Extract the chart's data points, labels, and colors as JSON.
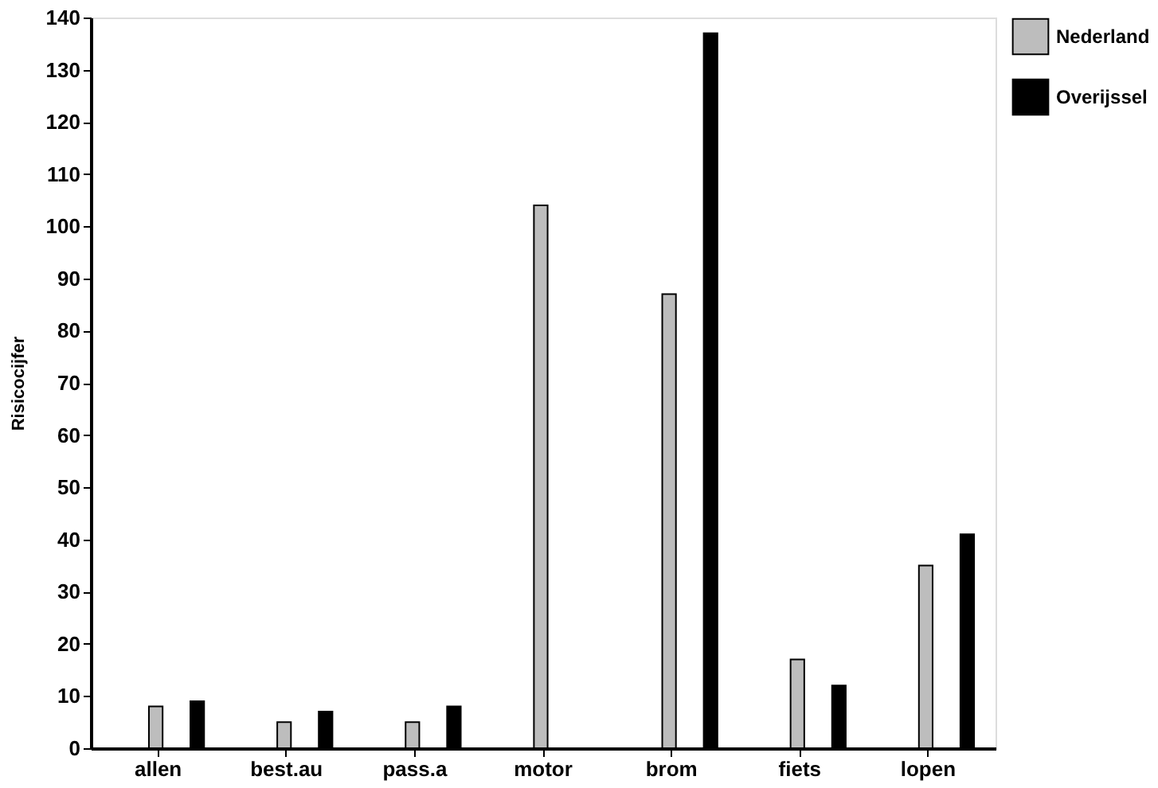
{
  "chart_data": {
    "type": "bar",
    "ylabel": "Risicocijfer",
    "categories": [
      "allen",
      "best.au",
      "pass.a",
      "motor",
      "brom",
      "fiets",
      "lopen"
    ],
    "series": [
      {
        "name": "Nederland",
        "color": "#bdbdbd",
        "values": [
          8,
          5,
          5,
          104,
          87,
          17,
          35
        ]
      },
      {
        "name": "Overijssel",
        "color": "#000000",
        "values": [
          9,
          7,
          8,
          0,
          137,
          12,
          41
        ]
      }
    ],
    "ylim": [
      0,
      140
    ],
    "yticks": [
      0,
      10,
      20,
      30,
      40,
      50,
      60,
      70,
      80,
      90,
      100,
      110,
      120,
      130,
      140
    ],
    "grid": false,
    "legend": "top right"
  }
}
